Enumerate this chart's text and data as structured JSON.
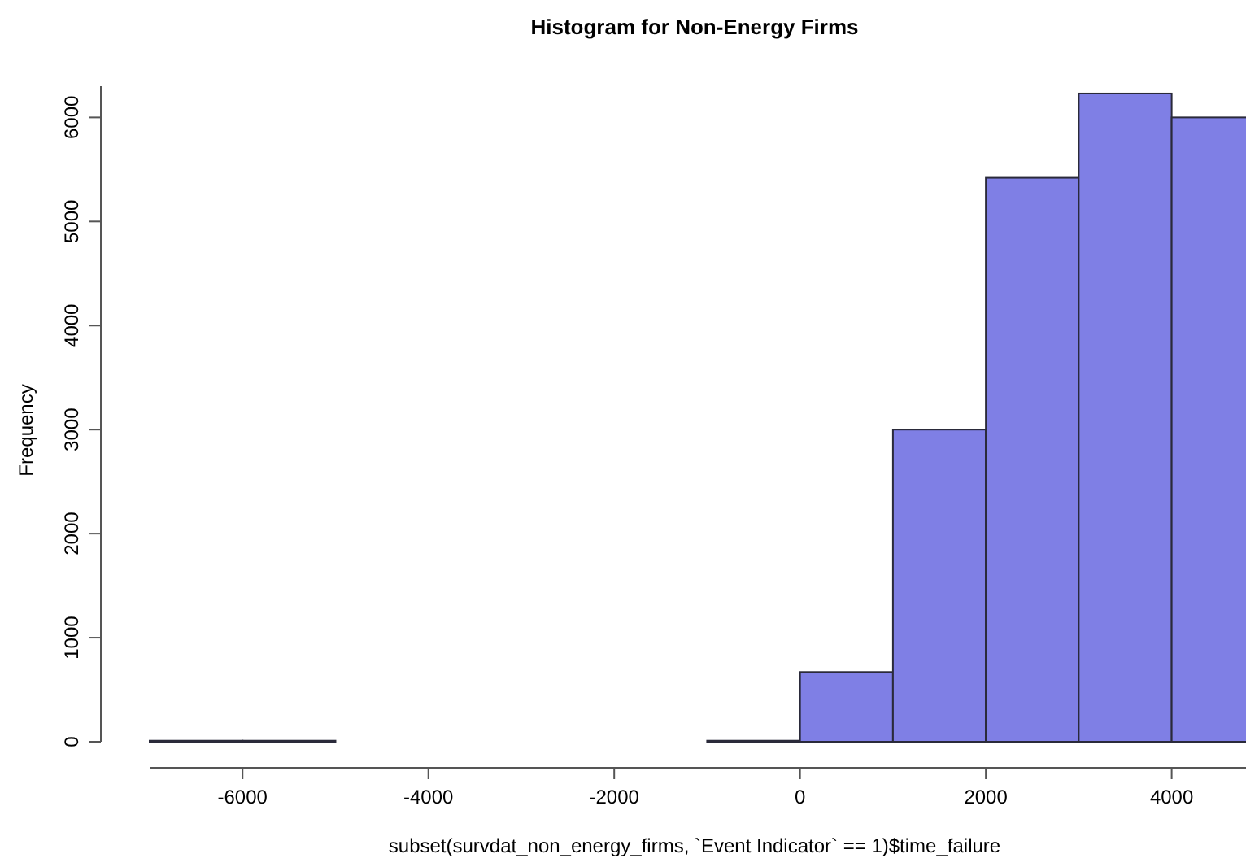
{
  "chart_data": {
    "type": "histogram",
    "title": "Histogram for Non-Energy Firms",
    "xlabel": "subset(survdat_non_energy_firms, `Event Indicator` == 1)$time_failure",
    "ylabel": "Frequency",
    "bins": [
      -7000,
      -6000,
      -5000,
      -4000,
      -3000,
      -2000,
      -1000,
      0,
      1000,
      2000,
      3000,
      4000,
      5000
    ],
    "values": [
      10,
      10,
      0,
      0,
      0,
      0,
      10,
      670,
      3000,
      5420,
      6230,
      6000
    ],
    "color": "#7f7fe5",
    "xlim": [
      -7000,
      4800
    ],
    "ylim": [
      0,
      6300
    ],
    "xticks": [
      -6000,
      -4000,
      -2000,
      0,
      2000,
      4000
    ],
    "yticks": [
      0,
      1000,
      2000,
      3000,
      4000,
      5000,
      6000
    ],
    "grid": false
  }
}
